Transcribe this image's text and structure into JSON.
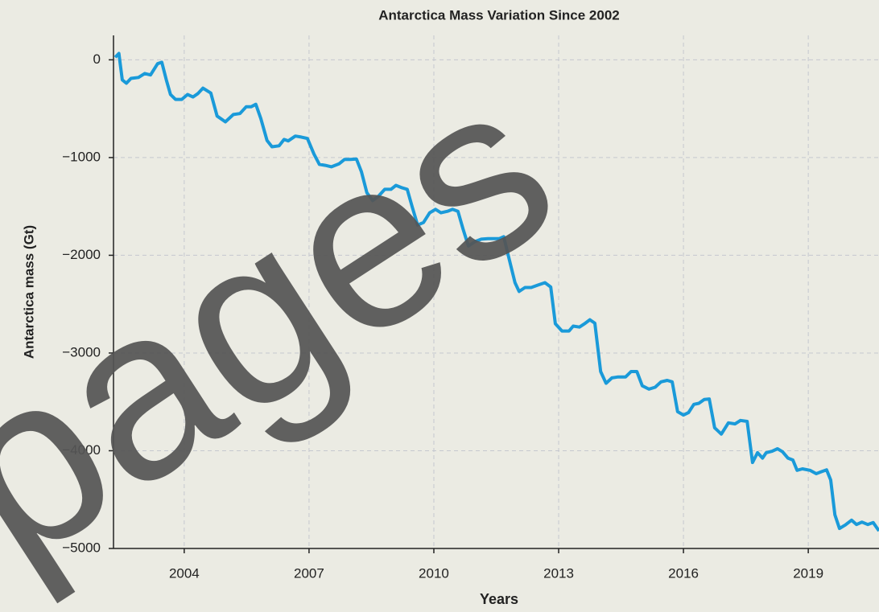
{
  "chart_data": {
    "type": "line",
    "title": "Antarctica Mass Variation Since 2002",
    "xlabel": "Years",
    "ylabel": "Antarctica mass (Gt)",
    "watermark": "pages",
    "color": "#1a9ad9",
    "grid": true,
    "xlim": [
      2002.3,
      2020.7
    ],
    "ylim": [
      -5000,
      250
    ],
    "xticks": [
      2004,
      2007,
      2010,
      2013,
      2016,
      2019
    ],
    "yticks": [
      0,
      {
        "value": -1000,
        "label": "−1000"
      },
      {
        "value": -2000,
        "label": "−2000"
      },
      {
        "value": -3000,
        "label": "−3000"
      },
      {
        "value": -4000,
        "label": "−4000"
      },
      {
        "value": -5000,
        "label": "−5000"
      }
    ],
    "x": [
      2002.34,
      2002.43,
      2002.51,
      2002.61,
      2002.72,
      2002.9,
      2003.05,
      2003.19,
      2003.36,
      2003.46,
      2003.57,
      2003.67,
      2003.79,
      2003.94,
      2004.08,
      2004.21,
      2004.33,
      2004.45,
      2004.64,
      2004.79,
      2004.99,
      2005.18,
      2005.34,
      2005.49,
      2005.61,
      2005.72,
      2005.84,
      2005.99,
      2006.11,
      2006.28,
      2006.4,
      2006.5,
      2006.67,
      2006.81,
      2006.96,
      2007.12,
      2007.25,
      2007.39,
      2007.54,
      2007.72,
      2007.85,
      2007.99,
      2008.14,
      2008.26,
      2008.39,
      2008.53,
      2008.66,
      2008.82,
      2008.97,
      2009.09,
      2009.24,
      2009.36,
      2009.48,
      2009.61,
      2009.75,
      2009.9,
      2010.04,
      2010.17,
      2010.33,
      2010.45,
      2010.58,
      2010.7,
      2010.83,
      2010.99,
      2011.14,
      2011.3,
      2011.43,
      2011.57,
      2011.68,
      2011.8,
      2011.95,
      2012.05,
      2012.19,
      2012.34,
      2012.5,
      2012.67,
      2012.81,
      2012.92,
      2013.08,
      2013.25,
      2013.35,
      2013.5,
      2013.64,
      2013.75,
      2013.87,
      2014.01,
      2014.14,
      2014.28,
      2014.43,
      2014.61,
      2014.74,
      2014.88,
      2015.01,
      2015.17,
      2015.32,
      2015.46,
      2015.61,
      2015.73,
      2015.86,
      2016.0,
      2016.12,
      2016.25,
      2016.37,
      2016.5,
      2016.62,
      2016.75,
      2016.91,
      2017.08,
      2017.24,
      2017.37,
      2017.53,
      2017.66,
      2017.78,
      2017.9,
      2017.99,
      2018.13,
      2018.26,
      2018.38,
      2018.51,
      2018.63,
      2018.73,
      2018.86,
      2019.04,
      2019.19,
      2019.31,
      2019.44,
      2019.54,
      2019.64,
      2019.75,
      2019.89,
      2020.04,
      2020.16,
      2020.29,
      2020.43,
      2020.56,
      2020.7
    ],
    "values": [
      25,
      65,
      -205,
      -240,
      -190,
      -180,
      -140,
      -155,
      -40,
      -25,
      -205,
      -355,
      -405,
      -405,
      -355,
      -380,
      -345,
      -290,
      -340,
      -575,
      -635,
      -560,
      -550,
      -480,
      -480,
      -455,
      -600,
      -825,
      -890,
      -880,
      -815,
      -830,
      -780,
      -790,
      -805,
      -965,
      -1070,
      -1080,
      -1095,
      -1065,
      -1020,
      -1020,
      -1015,
      -1145,
      -1360,
      -1440,
      -1400,
      -1325,
      -1325,
      -1285,
      -1310,
      -1325,
      -1505,
      -1690,
      -1665,
      -1565,
      -1530,
      -1565,
      -1550,
      -1530,
      -1550,
      -1730,
      -1905,
      -1860,
      -1835,
      -1830,
      -1830,
      -1830,
      -1810,
      -2020,
      -2280,
      -2370,
      -2330,
      -2330,
      -2305,
      -2280,
      -2325,
      -2700,
      -2775,
      -2775,
      -2725,
      -2735,
      -2695,
      -2660,
      -2695,
      -3190,
      -3310,
      -3255,
      -3245,
      -3245,
      -3190,
      -3190,
      -3335,
      -3370,
      -3350,
      -3295,
      -3280,
      -3295,
      -3600,
      -3635,
      -3610,
      -3525,
      -3515,
      -3475,
      -3470,
      -3765,
      -3830,
      -3715,
      -3725,
      -3690,
      -3700,
      -4120,
      -4020,
      -4075,
      -4020,
      -4005,
      -3980,
      -4010,
      -4075,
      -4095,
      -4200,
      -4185,
      -4200,
      -4235,
      -4215,
      -4195,
      -4300,
      -4655,
      -4795,
      -4760,
      -4710,
      -4755,
      -4730,
      -4755,
      -4735,
      -4820
    ]
  }
}
